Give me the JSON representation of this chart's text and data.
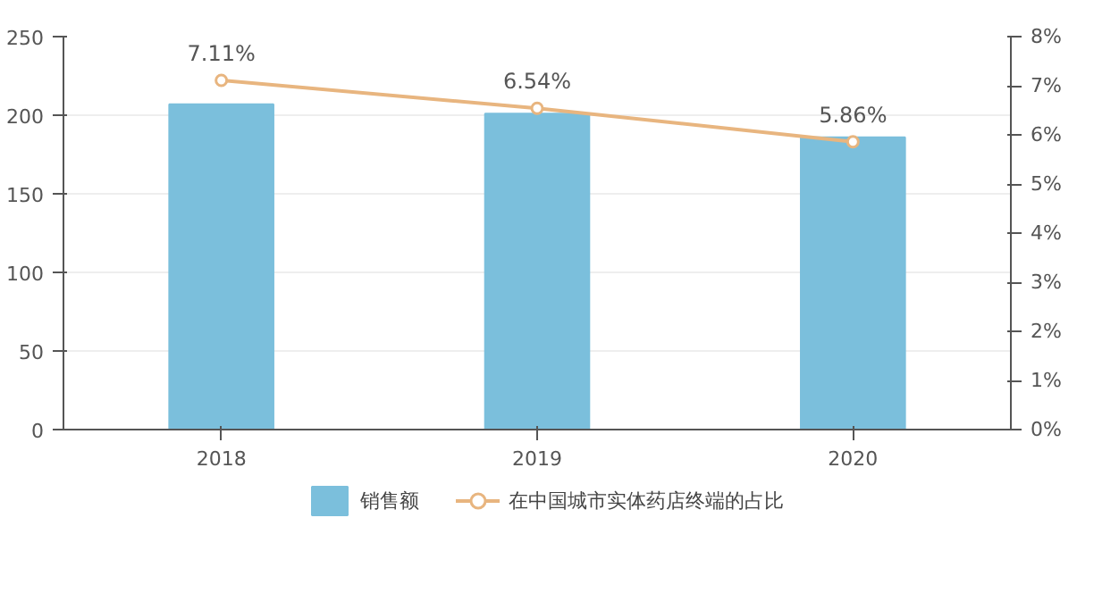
{
  "chart_data": {
    "type": "bar",
    "categories": [
      "2018",
      "2019",
      "2020"
    ],
    "series": [
      {
        "name": "销售额",
        "type": "bar",
        "color": "#7bbfdc",
        "values": [
          207,
          201,
          186
        ]
      },
      {
        "name": "在中国城市实体药店终端的占比",
        "type": "line",
        "axis": "y2",
        "color": "#e8b57f",
        "marker": "circle",
        "values": [
          7.11,
          6.54,
          5.86
        ],
        "value_labels": [
          "7.11%",
          "6.54%",
          "5.86%"
        ]
      }
    ],
    "ylim": [
      0,
      250
    ],
    "yticks": [
      0,
      50,
      100,
      150,
      200,
      250
    ],
    "y2lim": [
      0,
      8
    ],
    "y2ticks": [
      {
        "value": 0,
        "label": "0%"
      },
      {
        "value": 1,
        "label": "1%"
      },
      {
        "value": 2,
        "label": "2%"
      },
      {
        "value": 3,
        "label": "3%"
      },
      {
        "value": 4,
        "label": "4%"
      },
      {
        "value": 5,
        "label": "5%"
      },
      {
        "value": 6,
        "label": "6%"
      },
      {
        "value": 7,
        "label": "7%"
      },
      {
        "value": 8,
        "label": "8%"
      }
    ],
    "grid": "y",
    "legend": "bottom"
  }
}
